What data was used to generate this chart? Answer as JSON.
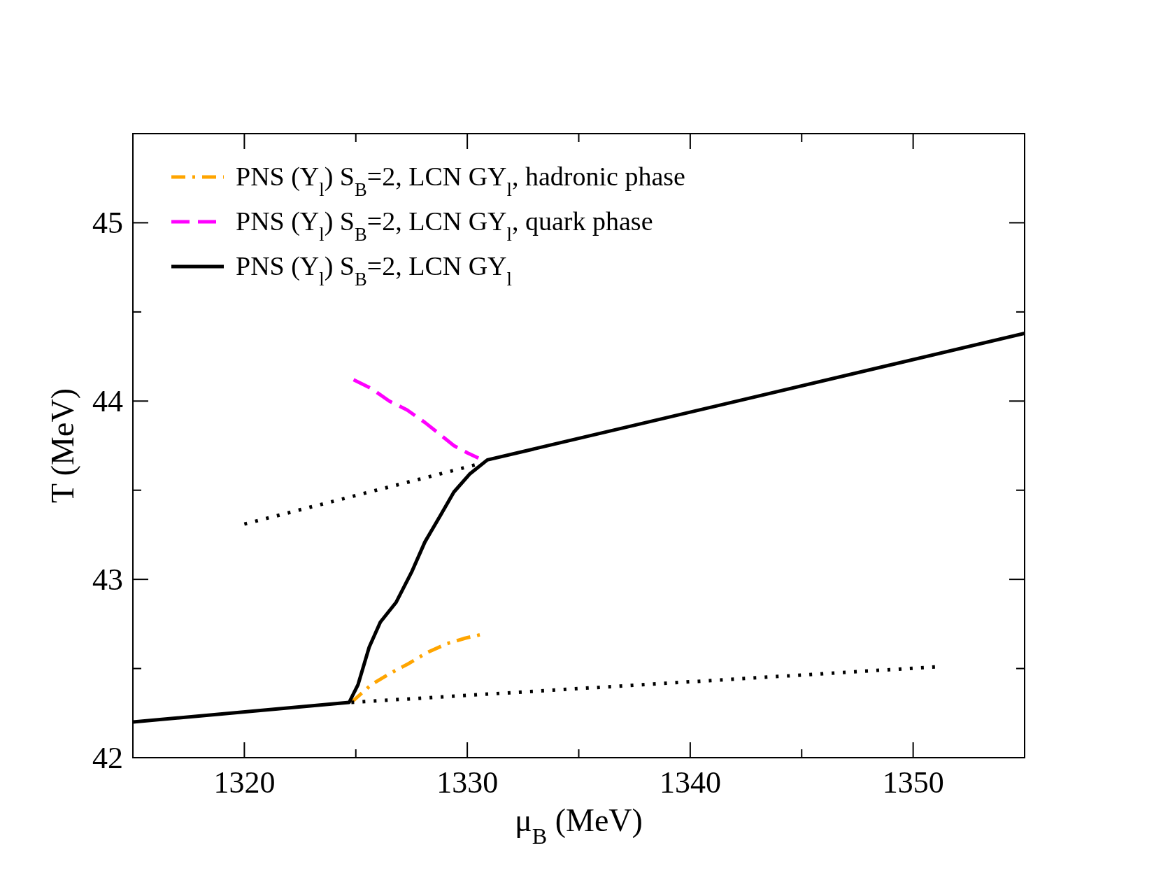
{
  "chart_data": {
    "type": "line",
    "xlabel": "μ$_{B}$ (MeV)",
    "ylabel": "T (MeV)",
    "xlim": [
      1315,
      1355
    ],
    "ylim": [
      42,
      45.5
    ],
    "xticks": [
      {
        "value": 1315,
        "label": null
      },
      1320,
      {
        "value": 1325,
        "label": null
      },
      1330,
      {
        "value": 1335,
        "label": null
      },
      1340,
      {
        "value": 1345,
        "label": null
      },
      1350
    ],
    "yticks": [
      42,
      {
        "value": 42.5,
        "label": null
      },
      43,
      {
        "value": 43.5,
        "label": null
      },
      44,
      {
        "value": 44.5,
        "label": null
      },
      45
    ],
    "legend": "top left",
    "grid": false,
    "series": [
      {
        "name": "PNS (Y$_{l}$) S$_{B}$=2, LCN GY$_{l}$, hadronic phase",
        "color": "#ffa500",
        "line_style": "dashdot",
        "x": [
          1324.8,
          1325.7,
          1326.5,
          1327.4,
          1328.2,
          1329.1,
          1329.9,
          1330.6
        ],
        "values": [
          42.31,
          42.41,
          42.47,
          42.53,
          42.59,
          42.64,
          42.67,
          42.69
        ]
      },
      {
        "name": "PNS (Y$_{l}$) S$_{B}$=2, LCN GY$_{l}$, quark phase",
        "color": "#ff00ff",
        "line_style": "dashed",
        "x": [
          1324.9,
          1325.7,
          1326.5,
          1327.3,
          1328.1,
          1328.8,
          1329.4,
          1330.0,
          1330.5
        ],
        "values": [
          44.12,
          44.07,
          44.0,
          43.95,
          43.88,
          43.81,
          43.75,
          43.71,
          43.68
        ]
      },
      {
        "name": "PNS (Y$_{l}$) S$_{B}$=2, LCN GY$_{l}$",
        "color": "#000000",
        "line_style": "solid",
        "x": [
          1315,
          1324.7,
          1325.1,
          1325.6,
          1326.1,
          1326.8,
          1327.5,
          1328.1,
          1328.8,
          1329.4,
          1330.1,
          1330.9,
          1355
        ],
        "values": [
          42.2,
          42.31,
          42.41,
          42.62,
          42.76,
          42.87,
          43.04,
          43.21,
          43.36,
          43.49,
          43.59,
          43.67,
          44.38
        ]
      },
      {
        "color": "#000000",
        "line_style": "dotted",
        "x": [
          1320,
          1330.6
        ],
        "values": [
          43.31,
          43.65
        ]
      },
      {
        "color": "#000000",
        "line_style": "dotted",
        "x": [
          1324.8,
          1351.1
        ],
        "values": [
          42.31,
          42.51
        ]
      }
    ]
  }
}
